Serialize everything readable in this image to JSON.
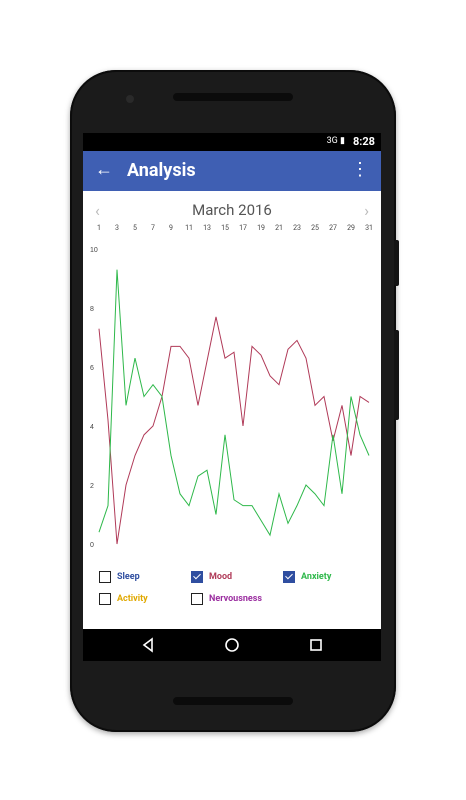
{
  "status_bar": {
    "time": "8:28",
    "icons": "3G ▮"
  },
  "app_bar": {
    "title": "Analysis"
  },
  "calendar": {
    "month": "March 2016",
    "days": [
      "1",
      "3",
      "5",
      "7",
      "9",
      "11",
      "13",
      "15",
      "17",
      "19",
      "21",
      "23",
      "25",
      "27",
      "29",
      "31"
    ]
  },
  "chart_data": {
    "type": "line",
    "ylim": [
      0,
      10
    ],
    "y_ticks": [
      "0",
      "2",
      "4",
      "6",
      "8",
      "10"
    ],
    "x": [
      1,
      2,
      3,
      4,
      5,
      6,
      7,
      8,
      9,
      10,
      11,
      12,
      13,
      14,
      15,
      16,
      17,
      18,
      19,
      20,
      21,
      22,
      23,
      24,
      25,
      26,
      27,
      28,
      29,
      30,
      31
    ],
    "series": [
      {
        "name": "Mood",
        "color": "#b03a58",
        "values": [
          7.3,
          4.2,
          0.0,
          2.0,
          3.0,
          3.7,
          4.0,
          5.0,
          6.7,
          6.7,
          6.3,
          4.7,
          6.2,
          7.7,
          6.3,
          6.5,
          4.0,
          6.7,
          6.4,
          5.7,
          5.4,
          6.6,
          6.9,
          6.3,
          4.7,
          5.0,
          3.5,
          4.7,
          3.0,
          5.0,
          4.8
        ]
      },
      {
        "name": "Anxiety",
        "color": "#2eb84a",
        "values": [
          0.4,
          1.3,
          9.3,
          4.7,
          6.3,
          5.0,
          5.4,
          5.0,
          3.0,
          1.7,
          1.3,
          2.3,
          2.5,
          1.0,
          3.7,
          1.5,
          1.3,
          1.3,
          0.8,
          0.3,
          1.7,
          0.7,
          1.3,
          2.0,
          1.7,
          1.3,
          3.7,
          1.7,
          5.0,
          3.7,
          3.0
        ]
      }
    ]
  },
  "legend": {
    "items": [
      {
        "label": "Sleep",
        "color": "#2f4ea0",
        "checked": false
      },
      {
        "label": "Mood",
        "color": "#b03a58",
        "checked": true
      },
      {
        "label": "Anxiety",
        "color": "#2eb84a",
        "checked": true
      },
      {
        "label": "Activity",
        "color": "#e0a800",
        "checked": false
      },
      {
        "label": "Nervousness",
        "color": "#9b2ea0",
        "checked": false
      }
    ]
  }
}
